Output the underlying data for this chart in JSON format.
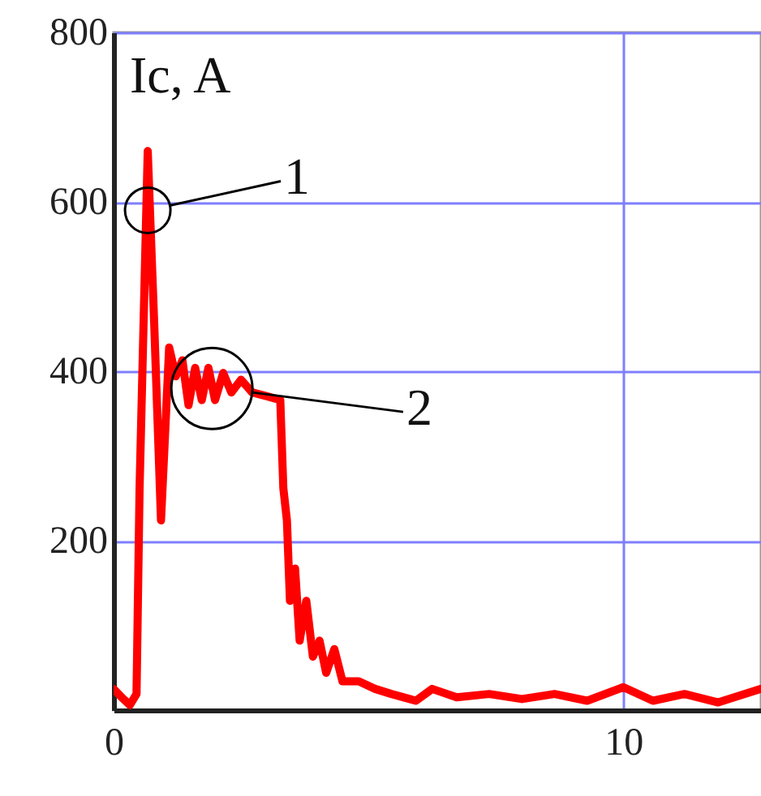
{
  "chart_data": {
    "type": "line",
    "ylabel": "Ic, A",
    "x": [
      0,
      0.16,
      0.32,
      0.45,
      0.51,
      0.67,
      0.8,
      0.93,
      1.09,
      1.22,
      1.35,
      1.47,
      1.6,
      1.73,
      1.86,
      1.99,
      2.15,
      2.31,
      2.5,
      2.72,
      3.04,
      3.27,
      3.33,
      3.4,
      3.46,
      3.56,
      3.65,
      3.78,
      3.91,
      4.04,
      4.17,
      4.33,
      4.49,
      4.81,
      5.13,
      5.45,
      5.93,
      6.25,
      6.73,
      7.37,
      8.01,
      8.65,
      9.29,
      10,
      10.58,
      11.2,
      11.86,
      12.7
    ],
    "series": [
      {
        "color": "#ff0000",
        "values": [
          25,
          15,
          6,
          19,
          262,
          660,
          451,
          224,
          428,
          394,
          413,
          360,
          404,
          366,
          404,
          366,
          398,
          375,
          390,
          375,
          370,
          366,
          262,
          224,
          129,
          167,
          82,
          129,
          63,
          82,
          44,
          72,
          34,
          34,
          25,
          19,
          11,
          25,
          15,
          19,
          13,
          19,
          11,
          27,
          11,
          19,
          9,
          25
        ]
      }
    ],
    "xlim": [
      0,
      12.7
    ],
    "xticks": [
      0,
      10
    ],
    "ylim": [
      0,
      800
    ],
    "yticks": [
      200,
      400,
      600,
      800
    ],
    "grid": true,
    "line_style": "solid",
    "marker": "none",
    "annotations": [
      {
        "text": "1",
        "x": 0.67,
        "y": 590
      },
      {
        "text": "2",
        "x": 2.72,
        "y": 375
      }
    ]
  }
}
